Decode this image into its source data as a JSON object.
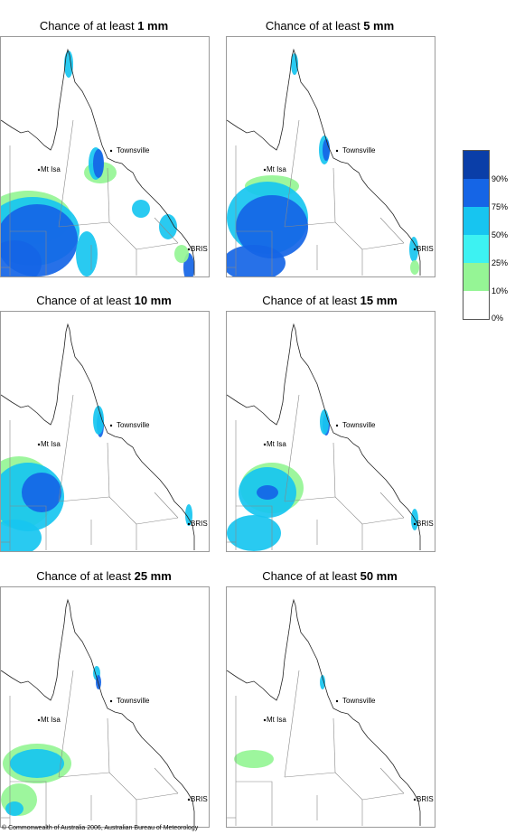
{
  "panels": [
    {
      "prefix": "Chance of at least ",
      "amount": "1 mm"
    },
    {
      "prefix": "Chance of at least ",
      "amount": "5 mm"
    },
    {
      "prefix": "Chance of at least ",
      "amount": "10 mm"
    },
    {
      "prefix": "Chance of at least ",
      "amount": "15 mm"
    },
    {
      "prefix": "Chance of at least ",
      "amount": "25 mm"
    },
    {
      "prefix": "Chance of at least ",
      "amount": "50 mm"
    }
  ],
  "places": {
    "townsville": "Townsville",
    "mt_isa": "Mt Isa",
    "bris": "BRIS"
  },
  "legend": {
    "ticks": [
      "90%",
      "75%",
      "50%",
      "25%",
      "10%",
      "0%"
    ],
    "colors": [
      "#0a3ea8",
      "#1565e6",
      "#17c5f0",
      "#3df2f2",
      "#95f595",
      "#ffffff"
    ]
  },
  "copyright": "© Commonwealth of Australia 2006, Australian Bureau of Meteorology"
}
